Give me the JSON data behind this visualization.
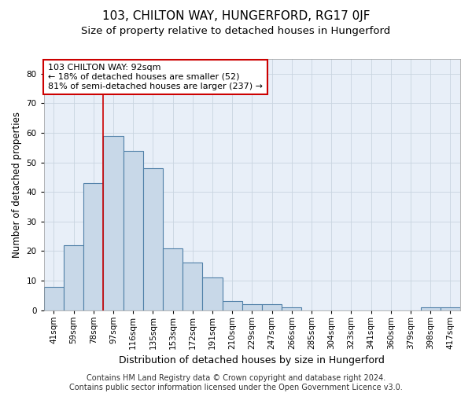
{
  "title": "103, CHILTON WAY, HUNGERFORD, RG17 0JF",
  "subtitle": "Size of property relative to detached houses in Hungerford",
  "xlabel": "Distribution of detached houses by size in Hungerford",
  "ylabel": "Number of detached properties",
  "categories": [
    "41sqm",
    "59sqm",
    "78sqm",
    "97sqm",
    "116sqm",
    "135sqm",
    "153sqm",
    "172sqm",
    "191sqm",
    "210sqm",
    "229sqm",
    "247sqm",
    "266sqm",
    "285sqm",
    "304sqm",
    "323sqm",
    "341sqm",
    "360sqm",
    "379sqm",
    "398sqm",
    "417sqm"
  ],
  "values": [
    8,
    22,
    43,
    59,
    54,
    48,
    21,
    16,
    11,
    3,
    2,
    2,
    1,
    0,
    0,
    0,
    0,
    0,
    0,
    1,
    1
  ],
  "bar_color": "#c8d8e8",
  "bar_edge_color": "#5080a8",
  "bar_linewidth": 0.8,
  "property_line_index": 2.5,
  "property_line_color": "#cc0000",
  "annotation_line1": "103 CHILTON WAY: 92sqm",
  "annotation_line2": "← 18% of detached houses are smaller (52)",
  "annotation_line3": "81% of semi-detached houses are larger (237) →",
  "annotation_box_color": "#ffffff",
  "annotation_box_edgecolor": "#cc0000",
  "annotation_fontsize": 8.0,
  "ylim": [
    0,
    85
  ],
  "yticks": [
    0,
    10,
    20,
    30,
    40,
    50,
    60,
    70,
    80
  ],
  "grid_color": "#c8d4e0",
  "background_color": "#e8eff8",
  "footer_text": "Contains HM Land Registry data © Crown copyright and database right 2024.\nContains public sector information licensed under the Open Government Licence v3.0.",
  "title_fontsize": 11,
  "subtitle_fontsize": 9.5,
  "xlabel_fontsize": 9,
  "ylabel_fontsize": 8.5,
  "tick_fontsize": 7.5,
  "footer_fontsize": 7.0
}
